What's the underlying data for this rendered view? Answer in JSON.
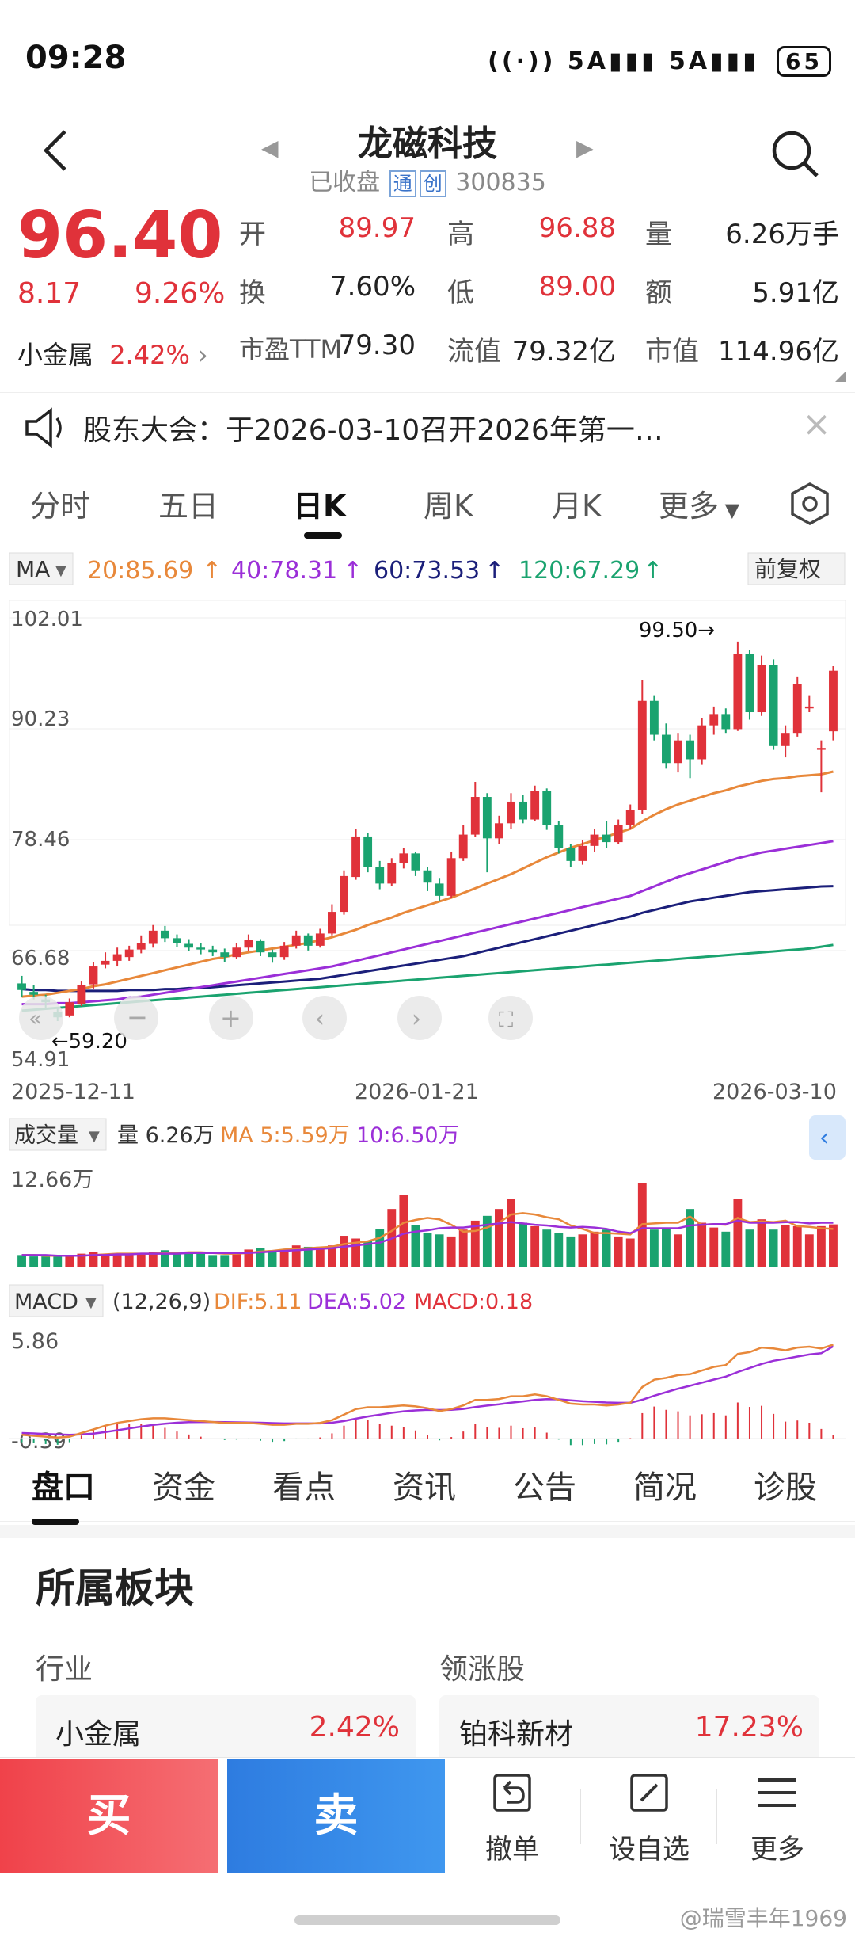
{
  "status_bar": {
    "time": "09:28",
    "network1": "5A",
    "network2": "5A",
    "battery": "65"
  },
  "header": {
    "title": "龙磁科技",
    "status": "已收盘",
    "tag1": "通",
    "tag2": "创",
    "code": "300835"
  },
  "quote": {
    "price": "96.40",
    "change": "8.17",
    "change_pct": "9.26%",
    "sector_name": "小金属",
    "sector_pct": "2.42%",
    "open_label": "开",
    "open": "89.97",
    "high_label": "高",
    "high": "96.88",
    "volume_label": "量",
    "volume": "6.26万手",
    "turnover_label": "换",
    "turnover": "7.60%",
    "low_label": "低",
    "low": "89.00",
    "amount_label": "额",
    "amount": "5.91亿",
    "pe_label": "市盈TTM",
    "pe": "79.30",
    "float_label": "流值",
    "float_value": "79.32亿",
    "mcap_label": "市值",
    "mcap": "114.96亿"
  },
  "announcement": {
    "text": "股东大会：于2026-03-10召开2026年第一…"
  },
  "chart_tabs": [
    "分时",
    "五日",
    "日K",
    "周K",
    "月K",
    "更多"
  ],
  "chart_data": {
    "type": "candlestick",
    "ma_selector": "MA",
    "adjust": "前复权",
    "ma_legend": [
      {
        "label": "20:85.69",
        "color": "#e8883a"
      },
      {
        "label": "40:78.31",
        "color": "#9b2fd8"
      },
      {
        "label": "60:73.53",
        "color": "#1b1f7a"
      },
      {
        "label": "120:67.29",
        "color": "#1aa36f"
      }
    ],
    "y_ticks": [
      "102.01",
      "90.23",
      "78.46",
      "66.68",
      "54.91"
    ],
    "ylim": [
      54.91,
      102.01
    ],
    "x_ticks": [
      "2025-12-11",
      "2026-01-21",
      "2026-03-10"
    ],
    "high_marker": "99.50→",
    "low_marker": "←59.20",
    "candles": [
      [
        63.2,
        62.5,
        64.0,
        61.8
      ],
      [
        62.3,
        62.0,
        63.0,
        61.5
      ],
      [
        61.5,
        61.2,
        62.0,
        60.5
      ],
      [
        60.2,
        59.6,
        60.7,
        59.2
      ],
      [
        59.8,
        61.2,
        61.6,
        59.6
      ],
      [
        61.0,
        63.0,
        63.4,
        60.8
      ],
      [
        63.1,
        65.0,
        65.5,
        62.6
      ],
      [
        65.2,
        65.6,
        66.5,
        64.8
      ],
      [
        65.6,
        66.3,
        67.0,
        65.0
      ],
      [
        66.0,
        66.8,
        67.2,
        65.6
      ],
      [
        66.8,
        67.5,
        68.3,
        66.4
      ],
      [
        67.4,
        68.8,
        69.4,
        67.0
      ],
      [
        68.8,
        68.0,
        69.3,
        67.6
      ],
      [
        68.0,
        67.5,
        68.4,
        67.1
      ],
      [
        67.4,
        67.0,
        67.9,
        66.6
      ],
      [
        67.0,
        66.8,
        67.5,
        66.3
      ],
      [
        66.8,
        66.5,
        67.2,
        66.1
      ],
      [
        66.5,
        66.0,
        66.9,
        65.5
      ],
      [
        66.0,
        67.0,
        67.5,
        65.8
      ],
      [
        67.0,
        67.8,
        68.4,
        66.6
      ],
      [
        67.7,
        66.5,
        67.9,
        66.1
      ],
      [
        66.5,
        66.0,
        66.8,
        65.4
      ],
      [
        66.0,
        67.2,
        67.6,
        65.7
      ],
      [
        67.2,
        68.3,
        68.8,
        66.9
      ],
      [
        68.3,
        67.2,
        68.5,
        66.7
      ],
      [
        67.2,
        68.5,
        69.0,
        67.0
      ],
      [
        68.5,
        70.8,
        71.6,
        68.3
      ],
      [
        70.8,
        74.6,
        75.2,
        70.5
      ],
      [
        74.5,
        78.8,
        79.6,
        74.2
      ],
      [
        78.8,
        75.6,
        79.2,
        75.0
      ],
      [
        75.6,
        73.8,
        76.2,
        73.2
      ],
      [
        73.8,
        76.0,
        76.5,
        73.5
      ],
      [
        76.0,
        77.0,
        77.6,
        75.4
      ],
      [
        77.0,
        75.2,
        77.2,
        74.6
      ],
      [
        75.2,
        73.9,
        75.6,
        73.0
      ],
      [
        73.8,
        72.5,
        74.4,
        72.0
      ],
      [
        72.5,
        76.5,
        77.2,
        72.3
      ],
      [
        76.5,
        79.0,
        80.0,
        76.2
      ],
      [
        79.0,
        83.0,
        84.6,
        78.8
      ],
      [
        83.0,
        78.6,
        83.4,
        75.0
      ],
      [
        78.6,
        80.2,
        81.0,
        78.0
      ],
      [
        80.2,
        82.5,
        83.4,
        79.6
      ],
      [
        82.5,
        80.6,
        83.2,
        80.2
      ],
      [
        80.6,
        83.6,
        84.2,
        80.4
      ],
      [
        83.6,
        80.0,
        83.9,
        79.5
      ],
      [
        80.0,
        77.6,
        80.4,
        77.0
      ],
      [
        77.6,
        76.2,
        78.0,
        75.6
      ],
      [
        76.2,
        77.8,
        78.4,
        75.8
      ],
      [
        77.8,
        79.0,
        79.6,
        77.2
      ],
      [
        79.0,
        78.2,
        80.4,
        77.6
      ],
      [
        78.2,
        80.0,
        80.6,
        78.0
      ],
      [
        80.0,
        81.6,
        82.2,
        79.6
      ],
      [
        81.6,
        93.2,
        95.4,
        81.2
      ],
      [
        93.2,
        89.6,
        93.8,
        89.0
      ],
      [
        89.6,
        86.6,
        90.8,
        86.0
      ],
      [
        86.6,
        89.0,
        89.8,
        85.6
      ],
      [
        89.0,
        87.0,
        89.6,
        85.0
      ],
      [
        87.0,
        90.6,
        91.4,
        86.4
      ],
      [
        90.6,
        91.8,
        92.6,
        89.6
      ],
      [
        91.8,
        90.2,
        92.4,
        89.8
      ],
      [
        90.2,
        98.2,
        99.5,
        90.0
      ],
      [
        98.2,
        92.0,
        98.6,
        91.2
      ],
      [
        92.0,
        97.0,
        98.0,
        91.6
      ],
      [
        97.0,
        88.4,
        97.6,
        88.0
      ],
      [
        88.4,
        89.8,
        90.6,
        87.2
      ],
      [
        89.8,
        95.0,
        95.8,
        89.4
      ],
      [
        92.4,
        92.6,
        93.8,
        92.0
      ],
      [
        88.0,
        88.2,
        89.0,
        83.5
      ],
      [
        89.97,
        96.4,
        96.88,
        89.0
      ]
    ],
    "ma20": [
      61.8,
      61.9,
      62.0,
      62.2,
      62.4,
      62.6,
      62.9,
      63.1,
      63.4,
      63.7,
      64.0,
      64.3,
      64.6,
      64.9,
      65.2,
      65.5,
      65.8,
      66.0,
      66.3,
      66.5,
      66.7,
      66.9,
      67.1,
      67.3,
      67.5,
      67.8,
      68.1,
      68.5,
      68.9,
      69.4,
      69.8,
      70.2,
      70.7,
      71.1,
      71.5,
      71.9,
      72.3,
      72.8,
      73.3,
      73.8,
      74.3,
      74.8,
      75.4,
      76.0,
      76.6,
      77.1,
      77.6,
      78.0,
      78.4,
      78.8,
      79.2,
      79.6,
      80.4,
      81.1,
      81.7,
      82.2,
      82.6,
      83.0,
      83.4,
      83.7,
      84.1,
      84.4,
      84.7,
      84.9,
      85.0,
      85.2,
      85.3,
      85.4,
      85.69
    ],
    "ma40": [
      61.0,
      61.0,
      61.0,
      61.1,
      61.1,
      61.2,
      61.3,
      61.4,
      61.5,
      61.7,
      61.8,
      62.0,
      62.2,
      62.4,
      62.6,
      62.8,
      63.0,
      63.2,
      63.4,
      63.6,
      63.8,
      64.0,
      64.2,
      64.4,
      64.6,
      64.8,
      65.0,
      65.3,
      65.6,
      65.9,
      66.2,
      66.5,
      66.8,
      67.1,
      67.4,
      67.7,
      68.0,
      68.3,
      68.6,
      68.9,
      69.2,
      69.5,
      69.8,
      70.1,
      70.4,
      70.7,
      71.0,
      71.3,
      71.6,
      71.9,
      72.2,
      72.5,
      73.0,
      73.5,
      74.0,
      74.5,
      74.9,
      75.3,
      75.7,
      76.1,
      76.5,
      76.8,
      77.1,
      77.3,
      77.5,
      77.7,
      77.9,
      78.1,
      78.31
    ],
    "ma60": [
      62.6,
      62.5,
      62.5,
      62.4,
      62.4,
      62.4,
      62.4,
      62.4,
      62.4,
      62.5,
      62.5,
      62.5,
      62.6,
      62.6,
      62.7,
      62.7,
      62.8,
      62.9,
      63.0,
      63.1,
      63.2,
      63.3,
      63.4,
      63.5,
      63.6,
      63.7,
      63.9,
      64.1,
      64.3,
      64.5,
      64.7,
      64.9,
      65.1,
      65.3,
      65.5,
      65.7,
      65.9,
      66.1,
      66.4,
      66.7,
      67.0,
      67.3,
      67.6,
      67.9,
      68.2,
      68.5,
      68.8,
      69.1,
      69.4,
      69.7,
      70.0,
      70.3,
      70.7,
      71.0,
      71.3,
      71.6,
      71.9,
      72.1,
      72.3,
      72.5,
      72.7,
      72.9,
      73.0,
      73.1,
      73.2,
      73.3,
      73.4,
      73.5,
      73.53
    ],
    "ma120": [
      60.3,
      60.4,
      60.5,
      60.6,
      60.7,
      60.8,
      60.9,
      61.0,
      61.1,
      61.2,
      61.3,
      61.4,
      61.5,
      61.6,
      61.7,
      61.8,
      61.9,
      62.0,
      62.1,
      62.2,
      62.3,
      62.4,
      62.5,
      62.6,
      62.7,
      62.8,
      62.9,
      63.0,
      63.1,
      63.2,
      63.3,
      63.4,
      63.5,
      63.6,
      63.7,
      63.8,
      63.9,
      64.0,
      64.1,
      64.2,
      64.3,
      64.4,
      64.5,
      64.6,
      64.7,
      64.8,
      64.9,
      65.0,
      65.1,
      65.2,
      65.3,
      65.4,
      65.5,
      65.6,
      65.7,
      65.8,
      65.9,
      66.0,
      66.1,
      66.2,
      66.3,
      66.4,
      66.5,
      66.6,
      66.7,
      66.8,
      66.9,
      67.1,
      67.29
    ],
    "volume_panel": {
      "title": "成交量",
      "legend_vol": "量 6.26万",
      "legend_ma5": "MA 5:5.59万",
      "legend_ma10": "10:6.50万",
      "max_label": "12.66万",
      "ymax": 12.66,
      "volumes": [
        1.8,
        1.6,
        1.6,
        1.7,
        1.6,
        2.0,
        2.2,
        2.0,
        2.0,
        1.8,
        2.0,
        2.2,
        2.5,
        2.2,
        2.1,
        2.0,
        1.8,
        1.8,
        2.3,
        2.6,
        2.8,
        2.5,
        2.6,
        3.2,
        3.0,
        3.0,
        3.2,
        4.6,
        4.2,
        3.8,
        5.6,
        8.5,
        10.5,
        6.2,
        5.0,
        4.8,
        4.5,
        5.5,
        6.8,
        7.5,
        8.5,
        10.0,
        6.5,
        6.0,
        5.5,
        5.0,
        4.5,
        4.8,
        5.2,
        5.5,
        4.5,
        4.2,
        12.2,
        5.5,
        5.8,
        4.8,
        8.5,
        6.5,
        5.8,
        5.2,
        10.0,
        5.5,
        7.0,
        5.5,
        6.2,
        6.0,
        4.8,
        6.0,
        6.26
      ],
      "ma5": [
        1.8,
        1.8,
        1.7,
        1.7,
        1.7,
        1.7,
        1.8,
        1.9,
        2.0,
        2.0,
        2.0,
        2.0,
        2.1,
        2.1,
        2.2,
        2.2,
        2.1,
        2.0,
        2.0,
        2.1,
        2.3,
        2.4,
        2.6,
        2.7,
        2.8,
        2.9,
        3.0,
        3.4,
        3.6,
        3.8,
        4.3,
        5.3,
        6.5,
        6.9,
        7.2,
        7.0,
        6.2,
        5.2,
        5.3,
        5.8,
        6.5,
        7.7,
        7.9,
        7.7,
        7.3,
        7.0,
        6.1,
        5.6,
        5.0,
        5.0,
        4.9,
        4.8,
        6.3,
        6.4,
        6.5,
        6.5,
        7.4,
        6.2,
        6.3,
        6.2,
        7.2,
        6.6,
        6.7,
        6.6,
        6.8,
        6.0,
        5.9,
        5.7,
        5.59
      ],
      "ma10": [
        1.8,
        1.8,
        1.8,
        1.7,
        1.7,
        1.7,
        1.8,
        1.8,
        1.9,
        1.9,
        2.0,
        2.0,
        2.0,
        2.0,
        2.1,
        2.1,
        2.1,
        2.1,
        2.1,
        2.1,
        2.2,
        2.3,
        2.4,
        2.5,
        2.6,
        2.7,
        2.8,
        3.0,
        3.2,
        3.4,
        3.6,
        4.2,
        4.9,
        5.2,
        5.4,
        5.7,
        5.8,
        5.8,
        6.0,
        6.2,
        6.4,
        6.6,
        6.4,
        6.2,
        6.1,
        5.9,
        5.8,
        5.9,
        5.8,
        5.6,
        5.2,
        5.0,
        5.7,
        5.7,
        5.7,
        5.7,
        6.1,
        6.2,
        6.3,
        6.3,
        6.8,
        6.5,
        6.5,
        6.5,
        6.6,
        6.6,
        6.4,
        6.5,
        6.5
      ]
    },
    "macd_panel": {
      "title": "MACD",
      "params": "(12,26,9)",
      "dif_legend": "DIF:5.11",
      "dea_legend": "DEA:5.02",
      "macd_legend": "MACD:0.18",
      "ytop_label": "5.86",
      "ybottom_label": "-0.39",
      "ylim": [
        -0.39,
        5.86
      ],
      "dif": [
        0.2,
        0.15,
        0.1,
        0.05,
        0.1,
        0.3,
        0.5,
        0.7,
        0.85,
        0.95,
        1.05,
        1.1,
        1.1,
        1.05,
        1.0,
        0.95,
        0.9,
        0.85,
        0.85,
        0.85,
        0.8,
        0.75,
        0.75,
        0.8,
        0.8,
        0.85,
        1.0,
        1.3,
        1.6,
        1.7,
        1.7,
        1.75,
        1.8,
        1.75,
        1.65,
        1.5,
        1.6,
        1.8,
        2.1,
        2.1,
        2.15,
        2.3,
        2.3,
        2.4,
        2.3,
        2.1,
        1.9,
        1.85,
        1.85,
        1.8,
        1.85,
        1.95,
        2.8,
        3.2,
        3.3,
        3.45,
        3.5,
        3.7,
        3.9,
        4.0,
        4.6,
        4.7,
        4.95,
        4.9,
        4.8,
        4.95,
        5.0,
        4.9,
        5.11
      ],
      "dea": [
        0.3,
        0.28,
        0.25,
        0.22,
        0.2,
        0.22,
        0.27,
        0.35,
        0.45,
        0.55,
        0.65,
        0.74,
        0.81,
        0.86,
        0.89,
        0.9,
        0.9,
        0.89,
        0.88,
        0.87,
        0.86,
        0.84,
        0.82,
        0.82,
        0.82,
        0.82,
        0.86,
        0.95,
        1.08,
        1.2,
        1.3,
        1.4,
        1.48,
        1.53,
        1.56,
        1.55,
        1.56,
        1.61,
        1.71,
        1.79,
        1.86,
        1.95,
        2.02,
        2.1,
        2.14,
        2.13,
        2.08,
        2.03,
        2.0,
        1.96,
        1.94,
        1.94,
        2.11,
        2.33,
        2.52,
        2.71,
        2.87,
        3.04,
        3.21,
        3.37,
        3.62,
        3.84,
        4.06,
        4.23,
        4.34,
        4.46,
        4.57,
        4.64,
        5.02
      ]
    }
  },
  "info_tabs": [
    "盘口",
    "资金",
    "看点",
    "资讯",
    "公告",
    "简况",
    "诊股"
  ],
  "sector_section": {
    "title": "所属板块",
    "industry_label": "行业",
    "leader_label": "领涨股",
    "industry_name": "小金属",
    "industry_pct": "2.42%",
    "leader_name": "铂科新材",
    "leader_pct": "17.23%"
  },
  "actions": {
    "buy": "买",
    "sell": "卖",
    "cancel": "撤单",
    "watchlist": "设自选",
    "more": "更多"
  },
  "watermark": "@瑞雪丰年1969"
}
